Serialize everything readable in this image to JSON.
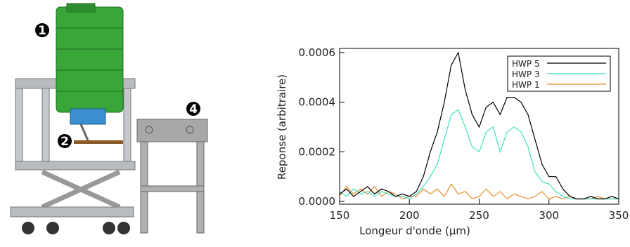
{
  "illustration": {
    "labels": [
      "1",
      "2",
      "4"
    ]
  },
  "chart_data": {
    "type": "line",
    "xlabel": "Longeur d'onde (μm)",
    "ylabel": "Reponse (arbitraire)",
    "x": [
      150,
      155,
      160,
      165,
      170,
      175,
      180,
      185,
      190,
      195,
      200,
      205,
      210,
      215,
      220,
      225,
      230,
      235,
      240,
      245,
      250,
      255,
      260,
      265,
      270,
      275,
      280,
      285,
      290,
      295,
      300,
      305,
      310,
      315,
      320,
      325,
      330,
      335,
      340,
      345,
      350
    ],
    "series": [
      {
        "name": "HWP 5",
        "color": "#000000",
        "values": [
          3e-05,
          5e-05,
          2e-05,
          4e-05,
          6e-05,
          3e-05,
          5e-05,
          4e-05,
          2e-05,
          3e-05,
          2e-05,
          4e-05,
          0.0001,
          0.0002,
          0.00028,
          0.0004,
          0.00055,
          0.0006,
          0.00045,
          0.00035,
          0.0003,
          0.00038,
          0.0004,
          0.00035,
          0.00042,
          0.00042,
          0.0004,
          0.00035,
          0.00025,
          0.00015,
          0.0001,
          0.0001,
          5e-05,
          2e-05,
          1e-05,
          1e-05,
          2e-05,
          1e-05,
          1e-05,
          2e-05,
          1e-05
        ]
      },
      {
        "name": "HWP 3",
        "color": "#40e0c0",
        "values": [
          4e-05,
          2e-05,
          5e-05,
          3e-05,
          4e-05,
          2e-05,
          4e-05,
          3e-05,
          2e-05,
          2e-05,
          1e-05,
          3e-05,
          6e-05,
          0.0001,
          0.00015,
          0.00025,
          0.00035,
          0.00037,
          0.0003,
          0.00022,
          0.0002,
          0.00028,
          0.0003,
          0.0002,
          0.00028,
          0.0003,
          0.00028,
          0.00022,
          0.00012,
          8e-05,
          7e-05,
          4e-05,
          2e-05,
          1e-05,
          1e-05,
          1e-05,
          1e-05,
          1e-05,
          1e-05,
          1e-05,
          1e-05
        ]
      },
      {
        "name": "HWP 1",
        "color": "#e8902a",
        "values": [
          2e-05,
          6e-05,
          3e-05,
          5e-05,
          3e-05,
          6e-05,
          2e-05,
          4e-05,
          3e-05,
          1e-05,
          2e-05,
          2e-05,
          5e-05,
          3e-05,
          5e-05,
          2e-05,
          7e-05,
          3e-05,
          4e-05,
          1e-05,
          2e-05,
          5e-05,
          2e-05,
          4e-05,
          1e-05,
          3e-05,
          2e-05,
          1e-05,
          2e-05,
          4e-05,
          1e-05,
          2e-05,
          1e-05,
          2e-05,
          1e-05,
          1e-05,
          1e-05,
          2e-05,
          1e-05,
          1e-05,
          1e-05
        ]
      }
    ],
    "xlim": [
      150,
      350
    ],
    "xticks": [
      150,
      200,
      250,
      300,
      350
    ],
    "ylim": [
      0,
      0.0006
    ],
    "yticks": [
      {
        "value": 0,
        "label": "0.0000"
      },
      {
        "value": 0.0002,
        "label": "0.0002"
      },
      {
        "value": 0.0004,
        "label": "0.0004"
      },
      {
        "value": 0.0006,
        "label": "0.0006"
      }
    ],
    "legend": "upper right"
  }
}
